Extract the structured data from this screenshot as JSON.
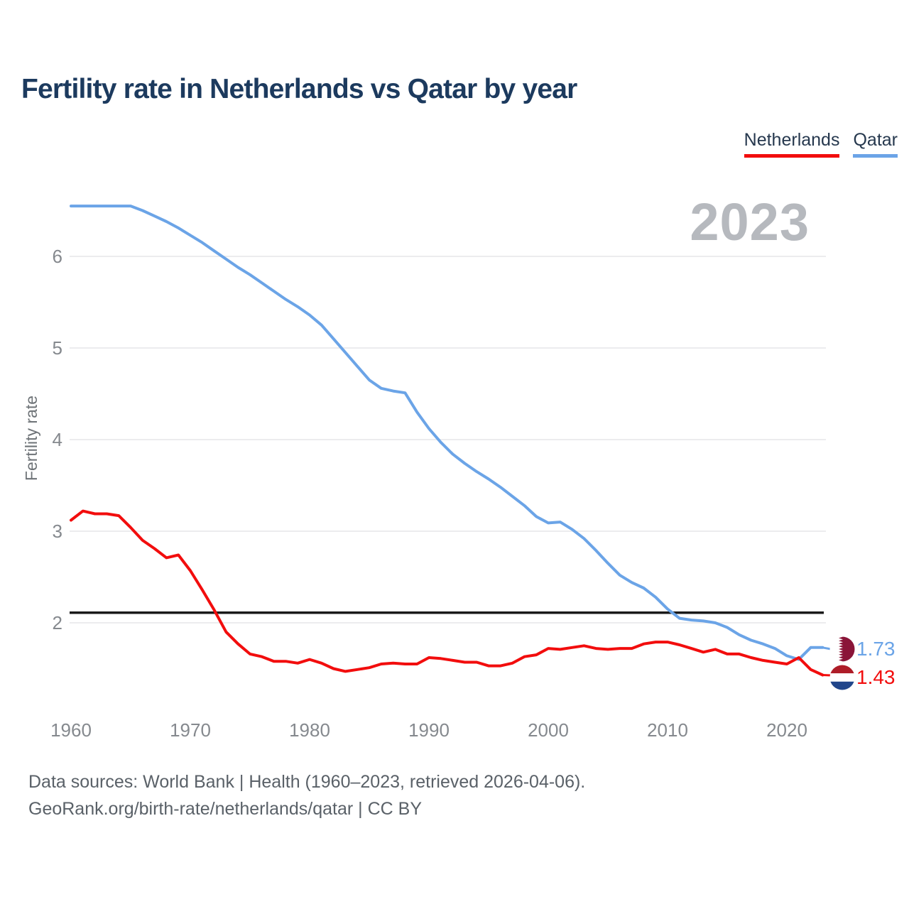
{
  "title": "Fertility rate in Netherlands vs Qatar by year",
  "watermark": "2023",
  "legend": {
    "items": [
      {
        "label": "Netherlands",
        "color": "#F20D0D"
      },
      {
        "label": "Qatar",
        "color": "#6BA4E7"
      }
    ]
  },
  "end_labels": [
    {
      "series": "Qatar",
      "value": "1.73",
      "color": "#6BA4E7",
      "flag_icon": "qatar-flag"
    },
    {
      "series": "Netherlands",
      "value": "1.43",
      "color": "#F20D0D",
      "flag_icon": "netherlands-flag"
    }
  ],
  "flags": {
    "qatar": {
      "maroon": "#8A1538",
      "white": "#FFFFFF"
    },
    "netherlands": {
      "red": "#AE1C28",
      "white": "#FFFFFF",
      "blue": "#21468B"
    }
  },
  "footer": {
    "line1": "Data sources: World Bank | Health (1960–2023, retrieved 2026-04-06).",
    "line2": "GeoRank.org/birth-rate/netherlands/qatar | CC BY"
  },
  "chart_data": {
    "type": "line",
    "title": "Fertility rate in Netherlands vs Qatar by year",
    "xlabel": "",
    "ylabel": "Fertility rate",
    "x_ticks": [
      1960,
      1970,
      1980,
      1990,
      2000,
      2010,
      2020
    ],
    "y_ticks": [
      2,
      3,
      4,
      5,
      6
    ],
    "xlim": [
      1960,
      2023
    ],
    "ylim": [
      1.3,
      6.8
    ],
    "grid": "horizontal-only",
    "legend_position": "top-right",
    "reference_line": {
      "value": 2.11,
      "color": "#1A1A1A",
      "meaning": "replacement-level fertility"
    },
    "grid_color": "#ECECEE",
    "x": [
      1960,
      1961,
      1962,
      1963,
      1964,
      1965,
      1966,
      1967,
      1968,
      1969,
      1970,
      1971,
      1972,
      1973,
      1974,
      1975,
      1976,
      1977,
      1978,
      1979,
      1980,
      1981,
      1982,
      1983,
      1984,
      1985,
      1986,
      1987,
      1988,
      1989,
      1990,
      1991,
      1992,
      1993,
      1994,
      1995,
      1996,
      1997,
      1998,
      1999,
      2000,
      2001,
      2002,
      2003,
      2004,
      2005,
      2006,
      2007,
      2008,
      2009,
      2010,
      2011,
      2012,
      2013,
      2014,
      2015,
      2016,
      2017,
      2018,
      2019,
      2020,
      2021,
      2022,
      2023
    ],
    "series": [
      {
        "name": "Qatar",
        "color": "#6BA4E7",
        "final_value": 1.73,
        "values": [
          6.55,
          6.55,
          6.55,
          6.55,
          6.55,
          6.55,
          6.5,
          6.44,
          6.38,
          6.31,
          6.23,
          6.15,
          6.06,
          5.97,
          5.88,
          5.8,
          5.71,
          5.62,
          5.53,
          5.45,
          5.36,
          5.25,
          5.1,
          4.95,
          4.8,
          4.65,
          4.56,
          4.53,
          4.51,
          4.3,
          4.12,
          3.97,
          3.84,
          3.74,
          3.65,
          3.57,
          3.48,
          3.38,
          3.28,
          3.16,
          3.09,
          3.1,
          3.02,
          2.92,
          2.79,
          2.65,
          2.52,
          2.44,
          2.38,
          2.28,
          2.15,
          2.05,
          2.03,
          2.02,
          2.0,
          1.95,
          1.87,
          1.81,
          1.77,
          1.72,
          1.64,
          1.6,
          1.73,
          1.73
        ]
      },
      {
        "name": "Netherlands",
        "color": "#F20D0D",
        "final_value": 1.43,
        "values": [
          3.12,
          3.22,
          3.19,
          3.19,
          3.17,
          3.04,
          2.9,
          2.81,
          2.71,
          2.74,
          2.57,
          2.36,
          2.14,
          1.9,
          1.77,
          1.66,
          1.63,
          1.58,
          1.58,
          1.56,
          1.6,
          1.56,
          1.5,
          1.47,
          1.49,
          1.51,
          1.55,
          1.56,
          1.55,
          1.55,
          1.62,
          1.61,
          1.59,
          1.57,
          1.57,
          1.53,
          1.53,
          1.56,
          1.63,
          1.65,
          1.72,
          1.71,
          1.73,
          1.75,
          1.72,
          1.71,
          1.72,
          1.72,
          1.77,
          1.79,
          1.79,
          1.76,
          1.72,
          1.68,
          1.71,
          1.66,
          1.66,
          1.62,
          1.59,
          1.57,
          1.55,
          1.62,
          1.49,
          1.43
        ]
      }
    ]
  }
}
